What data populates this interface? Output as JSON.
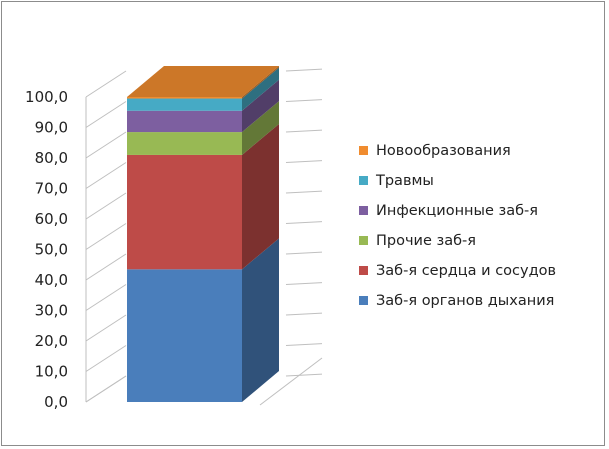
{
  "chart_data": {
    "type": "bar",
    "stacked": true,
    "three_d": true,
    "title": "",
    "xlabel": "",
    "ylabel": "",
    "ylim": [
      0,
      100
    ],
    "ytick_step": 10,
    "ytick_labels": [
      "0,0",
      "10,0",
      "20,0",
      "30,0",
      "40,0",
      "50,0",
      "60,0",
      "70,0",
      "80,0",
      "90,0",
      "100,0"
    ],
    "categories": [
      ""
    ],
    "grid": true,
    "legend_position": "right",
    "series": [
      {
        "name": "Заб-я органов дыхания",
        "values": [
          43.5
        ],
        "color": "#4a7ebb"
      },
      {
        "name": "Заб-я сердца и сосудов",
        "values": [
          37.5
        ],
        "color": "#be4b48"
      },
      {
        "name": "Прочие заб-я",
        "values": [
          7.5
        ],
        "color": "#98b954"
      },
      {
        "name": "Инфекционные заб-я",
        "values": [
          7.0
        ],
        "color": "#7d5fa0"
      },
      {
        "name": "Травмы",
        "values": [
          4.0
        ],
        "color": "#46aac5"
      },
      {
        "name": "Новообразования",
        "values": [
          0.5
        ],
        "color": "#f08c2f"
      }
    ]
  }
}
